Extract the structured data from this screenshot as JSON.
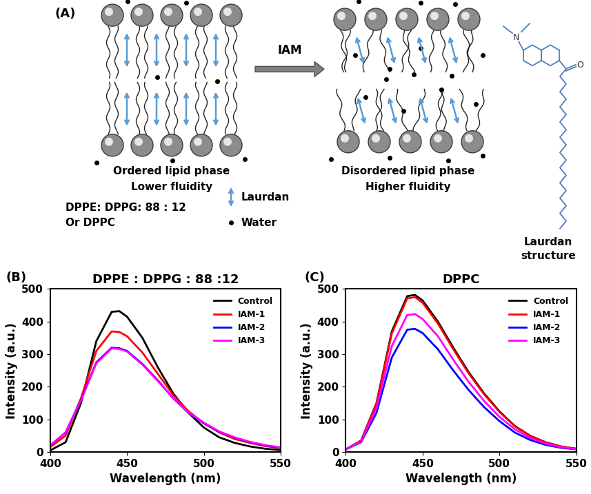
{
  "diagram": {
    "panel_label": "(A)",
    "arrow_label": "IAM",
    "left": {
      "title": "Ordered lipid phase",
      "subtitle": "Lower fluidity",
      "composition": [
        "DPPE: DPPG: 88 : 12",
        "Or DPPC"
      ]
    },
    "right": {
      "title": "Disordered lipid phase",
      "subtitle": "Higher fluidity"
    },
    "key": {
      "laurdan": "Laurdan",
      "water": "Water"
    },
    "structure_atoms": [
      "N",
      "O"
    ],
    "structure_label": [
      "Laurdan",
      "structure"
    ]
  },
  "chart_data": [
    {
      "type": "line",
      "panel_label": "(B)",
      "title": "DPPE : DPPG : 88 :12",
      "x_label": "Wavelength (nm)",
      "y_label": "Intensity (a.u.)",
      "x": [
        400,
        410,
        420,
        430,
        440,
        445,
        450,
        460,
        470,
        480,
        490,
        500,
        510,
        520,
        530,
        540,
        550
      ],
      "series": [
        {
          "name": "Control",
          "color": "#000000",
          "values": [
            5,
            30,
            150,
            340,
            430,
            432,
            415,
            350,
            260,
            180,
            120,
            75,
            45,
            28,
            17,
            10,
            6
          ]
        },
        {
          "name": "IAM-1",
          "color": "#ff0000",
          "values": [
            15,
            50,
            165,
            310,
            370,
            368,
            355,
            305,
            240,
            175,
            125,
            88,
            60,
            40,
            28,
            18,
            12
          ]
        },
        {
          "name": "IAM-2",
          "color": "#0000ff",
          "values": [
            20,
            60,
            160,
            275,
            320,
            318,
            310,
            270,
            220,
            165,
            120,
            88,
            62,
            44,
            30,
            20,
            13
          ]
        },
        {
          "name": "IAM-3",
          "color": "#ff00ff",
          "values": [
            20,
            60,
            158,
            272,
            318,
            316,
            308,
            268,
            218,
            165,
            121,
            90,
            63,
            45,
            31,
            21,
            14
          ]
        }
      ],
      "xlim": [
        400,
        550
      ],
      "ylim": [
        0,
        500
      ],
      "xticks": [
        400,
        450,
        500,
        550
      ],
      "yticks": [
        0,
        100,
        200,
        300,
        400,
        500
      ],
      "legend": "upper right"
    },
    {
      "type": "line",
      "panel_label": "(C)",
      "title": "DPPC",
      "x_label": "Wavelength (nm)",
      "y_label": "Intensity (a.u.)",
      "x": [
        400,
        410,
        420,
        430,
        440,
        445,
        450,
        460,
        470,
        480,
        490,
        500,
        510,
        520,
        530,
        540,
        550
      ],
      "series": [
        {
          "name": "Control",
          "color": "#000000",
          "values": [
            8,
            35,
            150,
            370,
            478,
            482,
            465,
            400,
            320,
            245,
            180,
            125,
            80,
            50,
            30,
            17,
            10
          ]
        },
        {
          "name": "IAM-1",
          "color": "#ff0000",
          "values": [
            8,
            34,
            148,
            364,
            471,
            475,
            458,
            394,
            315,
            241,
            177,
            123,
            79,
            49,
            30,
            17,
            10
          ]
        },
        {
          "name": "IAM-2",
          "color": "#0000ff",
          "values": [
            8,
            30,
            120,
            290,
            375,
            378,
            365,
            315,
            250,
            190,
            138,
            95,
            60,
            37,
            22,
            13,
            8
          ]
        },
        {
          "name": "IAM-3",
          "color": "#ff00ff",
          "values": [
            8,
            32,
            135,
            325,
            420,
            423,
            408,
            355,
            283,
            215,
            157,
            108,
            70,
            43,
            26,
            15,
            9
          ]
        }
      ],
      "xlim": [
        400,
        550
      ],
      "ylim": [
        0,
        500
      ],
      "xticks": [
        400,
        450,
        500,
        550
      ],
      "yticks": [
        0,
        100,
        200,
        300,
        400,
        500
      ],
      "legend": "upper right"
    }
  ]
}
